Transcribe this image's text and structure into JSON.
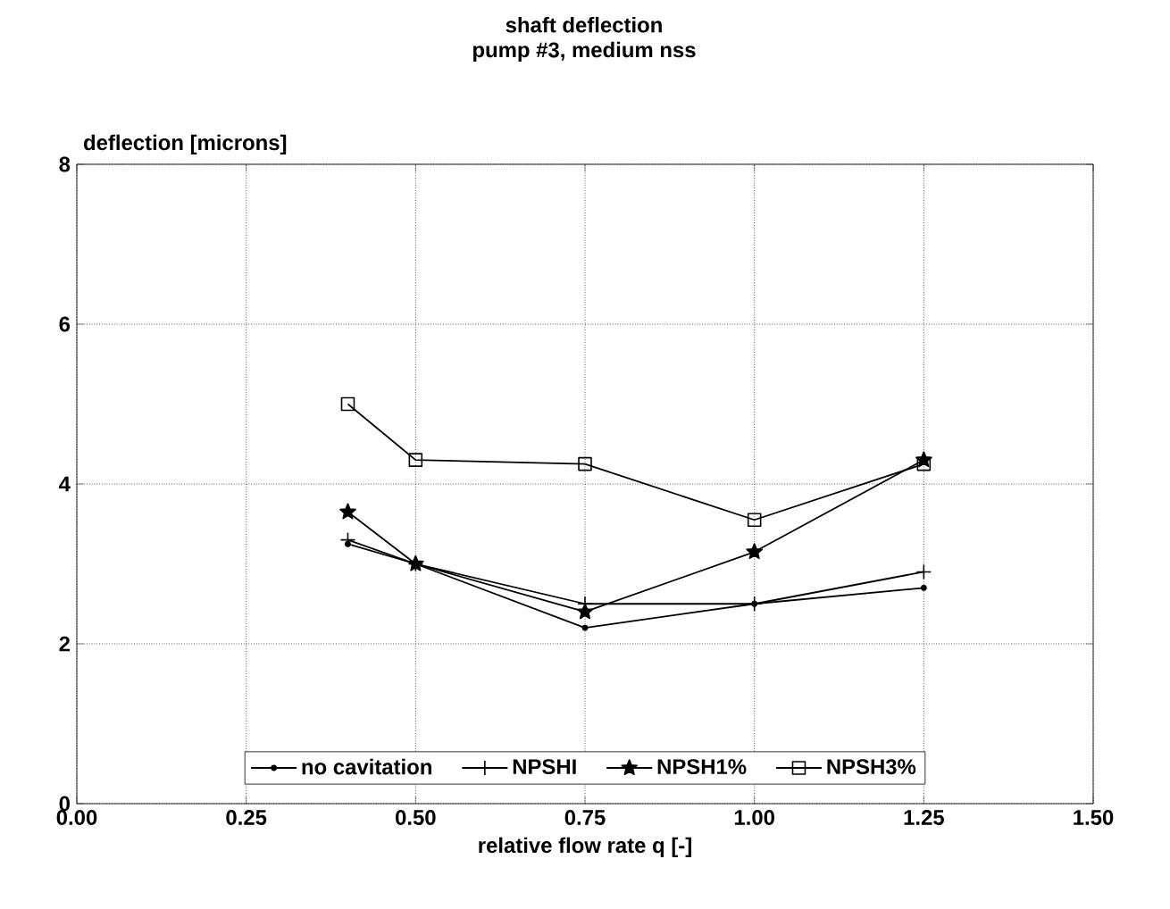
{
  "chart_data": {
    "type": "line",
    "title": "shaft deflection",
    "subtitle": "pump #3, medium nss",
    "xlabel": "relative flow rate q [-]",
    "ylabel": "deflection [microns]",
    "x": [
      0.4,
      0.5,
      0.75,
      1.0,
      1.25
    ],
    "series": [
      {
        "name": "no cavitation",
        "color": "#000000",
        "marker": "circle",
        "values": [
          3.25,
          3.0,
          2.2,
          2.5,
          2.7
        ]
      },
      {
        "name": "NPSHI",
        "color": "#000000",
        "marker": "cross",
        "values": [
          3.3,
          3.0,
          2.5,
          2.5,
          2.9
        ]
      },
      {
        "name": "NPSH1%",
        "color": "#000000",
        "marker": "star",
        "values": [
          3.65,
          3.0,
          2.4,
          3.15,
          4.3
        ]
      },
      {
        "name": "NPSH3%",
        "color": "#000000",
        "marker": "square",
        "values": [
          5.0,
          4.3,
          4.25,
          3.55,
          4.25
        ]
      }
    ],
    "xlim": [
      0,
      1.5
    ],
    "ylim": [
      0,
      8
    ],
    "xticks": [
      {
        "value": 0,
        "label": "0.00"
      },
      {
        "value": 0.25,
        "label": "0.25"
      },
      {
        "value": 0.5,
        "label": "0.50"
      },
      {
        "value": 0.75,
        "label": "0.75"
      },
      {
        "value": 1,
        "label": "1.00"
      },
      {
        "value": 1.25,
        "label": "1.25"
      },
      {
        "value": 1.5,
        "label": "1.50"
      }
    ],
    "yticks": [
      0,
      2,
      4,
      6,
      8
    ],
    "grid": true,
    "legend": "bottom",
    "line_style": "solid"
  }
}
